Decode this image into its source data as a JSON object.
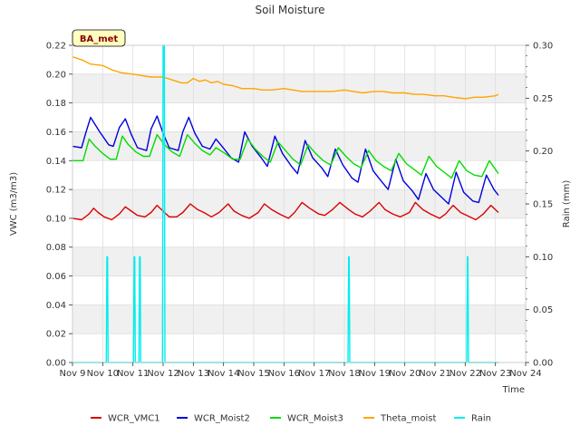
{
  "chart_data": {
    "type": "line",
    "title": "Soil Moisture",
    "site_label": "BA_met",
    "xlabel": "Time",
    "ylabel": "VWC (m3/m3)",
    "y2label": "Rain (mm)",
    "xlim": [
      9,
      24
    ],
    "ylim": [
      0,
      0.22
    ],
    "y2lim": [
      0,
      0.3
    ],
    "x_ticks": [
      9,
      10,
      11,
      12,
      13,
      14,
      15,
      16,
      17,
      18,
      19,
      20,
      21,
      22,
      23,
      24
    ],
    "x_tick_labels": [
      "Nov 9",
      "Nov 10",
      "Nov 11",
      "Nov 12",
      "Nov 13",
      "Nov 14",
      "Nov 15",
      "Nov 16",
      "Nov 17",
      "Nov 18",
      "Nov 19",
      "Nov 20",
      "Nov 21",
      "Nov 22",
      "Nov 23",
      "Nov 24"
    ],
    "y_ticks": [
      0.0,
      0.02,
      0.04,
      0.06,
      0.08,
      0.1,
      0.12,
      0.14,
      0.16,
      0.18,
      0.2,
      0.22
    ],
    "y_tick_labels": [
      "0.00",
      "0.02",
      "0.04",
      "0.06",
      "0.08",
      "0.10",
      "0.12",
      "0.14",
      "0.16",
      "0.18",
      "0.20",
      "0.22"
    ],
    "y2_ticks": [
      0.0,
      0.05,
      0.1,
      0.15,
      0.2,
      0.25,
      0.3
    ],
    "y2_tick_labels": [
      "0.00",
      "0.05",
      "0.10",
      "0.15",
      "0.20",
      "0.25",
      "0.30"
    ],
    "legend_position": "bottom",
    "series": [
      {
        "name": "WCR_VMC1",
        "color": "#dd0000",
        "axis": "left",
        "x": [
          9.0,
          9.3,
          9.55,
          9.7,
          9.85,
          10.05,
          10.3,
          10.55,
          10.75,
          10.95,
          11.15,
          11.4,
          11.6,
          11.8,
          12.0,
          12.2,
          12.45,
          12.65,
          12.9,
          13.15,
          13.35,
          13.6,
          13.85,
          14.15,
          14.35,
          14.6,
          14.85,
          15.15,
          15.35,
          15.6,
          15.85,
          16.15,
          16.35,
          16.6,
          16.85,
          17.15,
          17.35,
          17.6,
          17.85,
          18.15,
          18.35,
          18.6,
          18.85,
          19.15,
          19.35,
          19.6,
          19.85,
          20.15,
          20.35,
          20.6,
          20.85,
          21.15,
          21.35,
          21.6,
          21.85,
          22.15,
          22.35,
          22.6,
          22.85,
          23.1
        ],
        "y": [
          0.1,
          0.099,
          0.103,
          0.107,
          0.104,
          0.101,
          0.099,
          0.103,
          0.108,
          0.105,
          0.102,
          0.101,
          0.104,
          0.109,
          0.105,
          0.101,
          0.101,
          0.104,
          0.11,
          0.106,
          0.104,
          0.101,
          0.104,
          0.11,
          0.105,
          0.102,
          0.1,
          0.104,
          0.11,
          0.106,
          0.103,
          0.1,
          0.104,
          0.111,
          0.107,
          0.103,
          0.102,
          0.106,
          0.111,
          0.106,
          0.103,
          0.101,
          0.105,
          0.111,
          0.106,
          0.103,
          0.101,
          0.104,
          0.111,
          0.106,
          0.103,
          0.1,
          0.103,
          0.109,
          0.104,
          0.101,
          0.099,
          0.103,
          0.109,
          0.104
        ]
      },
      {
        "name": "WCR_Moist2",
        "color": "#0000dd",
        "axis": "left",
        "x": [
          9.0,
          9.3,
          9.45,
          9.6,
          9.9,
          10.2,
          10.35,
          10.55,
          10.75,
          10.95,
          11.15,
          11.45,
          11.6,
          11.8,
          12.0,
          12.2,
          12.5,
          12.65,
          12.85,
          13.05,
          13.3,
          13.55,
          13.75,
          13.95,
          14.25,
          14.5,
          14.7,
          14.95,
          15.25,
          15.45,
          15.7,
          15.95,
          16.25,
          16.45,
          16.7,
          16.95,
          17.25,
          17.45,
          17.7,
          17.95,
          18.25,
          18.45,
          18.7,
          18.95,
          19.25,
          19.45,
          19.7,
          19.95,
          20.25,
          20.45,
          20.7,
          20.95,
          21.25,
          21.45,
          21.7,
          21.95,
          22.25,
          22.45,
          22.7,
          22.95,
          23.1
        ],
        "y": [
          0.15,
          0.149,
          0.16,
          0.17,
          0.16,
          0.151,
          0.15,
          0.163,
          0.169,
          0.158,
          0.149,
          0.147,
          0.162,
          0.171,
          0.159,
          0.149,
          0.147,
          0.16,
          0.17,
          0.159,
          0.15,
          0.148,
          0.155,
          0.15,
          0.142,
          0.139,
          0.16,
          0.15,
          0.142,
          0.136,
          0.157,
          0.145,
          0.136,
          0.131,
          0.154,
          0.142,
          0.135,
          0.129,
          0.148,
          0.137,
          0.128,
          0.125,
          0.148,
          0.133,
          0.125,
          0.12,
          0.141,
          0.126,
          0.119,
          0.113,
          0.131,
          0.12,
          0.114,
          0.11,
          0.132,
          0.118,
          0.112,
          0.111,
          0.13,
          0.12,
          0.116
        ]
      },
      {
        "name": "WCR_Moist3",
        "color": "#00dd00",
        "axis": "left",
        "x": [
          9.0,
          9.35,
          9.55,
          9.75,
          10.0,
          10.25,
          10.45,
          10.65,
          10.85,
          11.1,
          11.35,
          11.55,
          11.8,
          12.05,
          12.3,
          12.55,
          12.8,
          13.05,
          13.3,
          13.55,
          13.75,
          14.05,
          14.3,
          14.55,
          14.8,
          15.05,
          15.3,
          15.55,
          15.8,
          16.05,
          16.3,
          16.55,
          16.8,
          17.05,
          17.3,
          17.55,
          17.8,
          18.05,
          18.3,
          18.55,
          18.8,
          19.05,
          19.3,
          19.55,
          19.8,
          20.05,
          20.3,
          20.55,
          20.8,
          21.05,
          21.3,
          21.55,
          21.8,
          22.05,
          22.3,
          22.55,
          22.8,
          23.1
        ],
        "y": [
          0.14,
          0.14,
          0.155,
          0.15,
          0.145,
          0.141,
          0.141,
          0.157,
          0.151,
          0.146,
          0.143,
          0.143,
          0.158,
          0.151,
          0.146,
          0.143,
          0.158,
          0.152,
          0.147,
          0.144,
          0.149,
          0.145,
          0.141,
          0.141,
          0.155,
          0.148,
          0.143,
          0.139,
          0.153,
          0.147,
          0.141,
          0.137,
          0.151,
          0.145,
          0.14,
          0.137,
          0.149,
          0.143,
          0.138,
          0.135,
          0.147,
          0.14,
          0.136,
          0.133,
          0.145,
          0.138,
          0.134,
          0.13,
          0.143,
          0.136,
          0.132,
          0.128,
          0.14,
          0.133,
          0.13,
          0.129,
          0.14,
          0.131
        ]
      },
      {
        "name": "Theta_moist",
        "color": "#ffa500",
        "axis": "left",
        "x": [
          9.0,
          9.3,
          9.6,
          10.0,
          10.3,
          10.6,
          11.0,
          11.3,
          11.6,
          12.0,
          12.3,
          12.6,
          12.8,
          13.0,
          13.2,
          13.4,
          13.6,
          13.8,
          14.0,
          14.3,
          14.6,
          15.0,
          15.3,
          15.6,
          16.0,
          16.3,
          16.6,
          17.0,
          17.3,
          17.6,
          18.0,
          18.3,
          18.6,
          19.0,
          19.3,
          19.6,
          20.0,
          20.3,
          20.6,
          21.0,
          21.3,
          21.6,
          22.0,
          22.3,
          22.6,
          23.0,
          23.1
        ],
        "y": [
          0.212,
          0.21,
          0.207,
          0.206,
          0.203,
          0.201,
          0.2,
          0.199,
          0.198,
          0.198,
          0.196,
          0.194,
          0.194,
          0.197,
          0.195,
          0.196,
          0.194,
          0.195,
          0.193,
          0.192,
          0.19,
          0.19,
          0.189,
          0.189,
          0.19,
          0.189,
          0.188,
          0.188,
          0.188,
          0.188,
          0.189,
          0.188,
          0.187,
          0.188,
          0.188,
          0.187,
          0.187,
          0.186,
          0.186,
          0.185,
          0.185,
          0.184,
          0.183,
          0.184,
          0.184,
          0.185,
          0.186
        ]
      },
      {
        "name": "Rain",
        "color": "#00eeee",
        "axis": "right",
        "x": [
          9.0,
          10.12,
          10.14,
          10.16,
          10.18,
          11.02,
          11.04,
          11.06,
          11.08,
          11.2,
          11.22,
          11.24,
          11.26,
          11.98,
          12.0,
          12.02,
          12.04,
          12.06,
          18.12,
          18.14,
          18.16,
          18.18,
          22.05,
          22.07,
          22.09,
          22.11,
          23.1
        ],
        "y": [
          0.0,
          0.0,
          0.1,
          0.1,
          0.0,
          0.0,
          0.1,
          0.1,
          0.0,
          0.0,
          0.1,
          0.1,
          0.0,
          0.0,
          0.3,
          0.3,
          0.3,
          0.0,
          0.0,
          0.1,
          0.1,
          0.0,
          0.0,
          0.1,
          0.1,
          0.0,
          0.0
        ]
      }
    ]
  }
}
